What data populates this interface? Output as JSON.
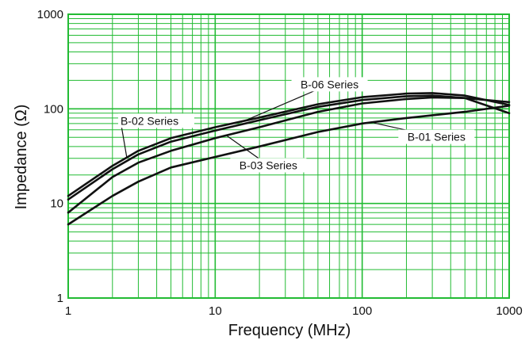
{
  "chart_data": {
    "type": "line",
    "xscale": "log",
    "yscale": "log",
    "xlim": [
      1,
      1000
    ],
    "ylim": [
      1,
      1000
    ],
    "xlabel": "Frequency (MHz)",
    "ylabel": "Impedance (Ω)",
    "x_ticks": [
      "1",
      "10",
      "100",
      "1000"
    ],
    "y_ticks": [
      "1",
      "10",
      "100",
      "1000"
    ],
    "grid": true,
    "colors": {
      "grid": "#22bb33",
      "line": "#111111"
    },
    "series": [
      {
        "name": "B-01 Series",
        "x": [
          1,
          2,
          3,
          5,
          10,
          20,
          50,
          100,
          200,
          500,
          1000
        ],
        "y": [
          6,
          12,
          17,
          24,
          31,
          40,
          57,
          70,
          80,
          93,
          108
        ]
      },
      {
        "name": "B-02 Series",
        "x": [
          1,
          2,
          3,
          5,
          10,
          20,
          50,
          100,
          200,
          300,
          500,
          1000
        ],
        "y": [
          12,
          25,
          36,
          49,
          64,
          81,
          112,
          133,
          145,
          147,
          138,
          110
        ]
      },
      {
        "name": "B-03 Series",
        "x": [
          1,
          2,
          3,
          5,
          10,
          20,
          50,
          100,
          200,
          300,
          500,
          1000
        ],
        "y": [
          8,
          19,
          27,
          36,
          49,
          64,
          93,
          114,
          127,
          132,
          130,
          118
        ]
      },
      {
        "name": "B-06 Series",
        "x": [
          1,
          2,
          3,
          5,
          10,
          20,
          50,
          100,
          200,
          300,
          500,
          1000
        ],
        "y": [
          11,
          23,
          33,
          45,
          59,
          76,
          105,
          124,
          136,
          138,
          130,
          90
        ]
      }
    ]
  }
}
